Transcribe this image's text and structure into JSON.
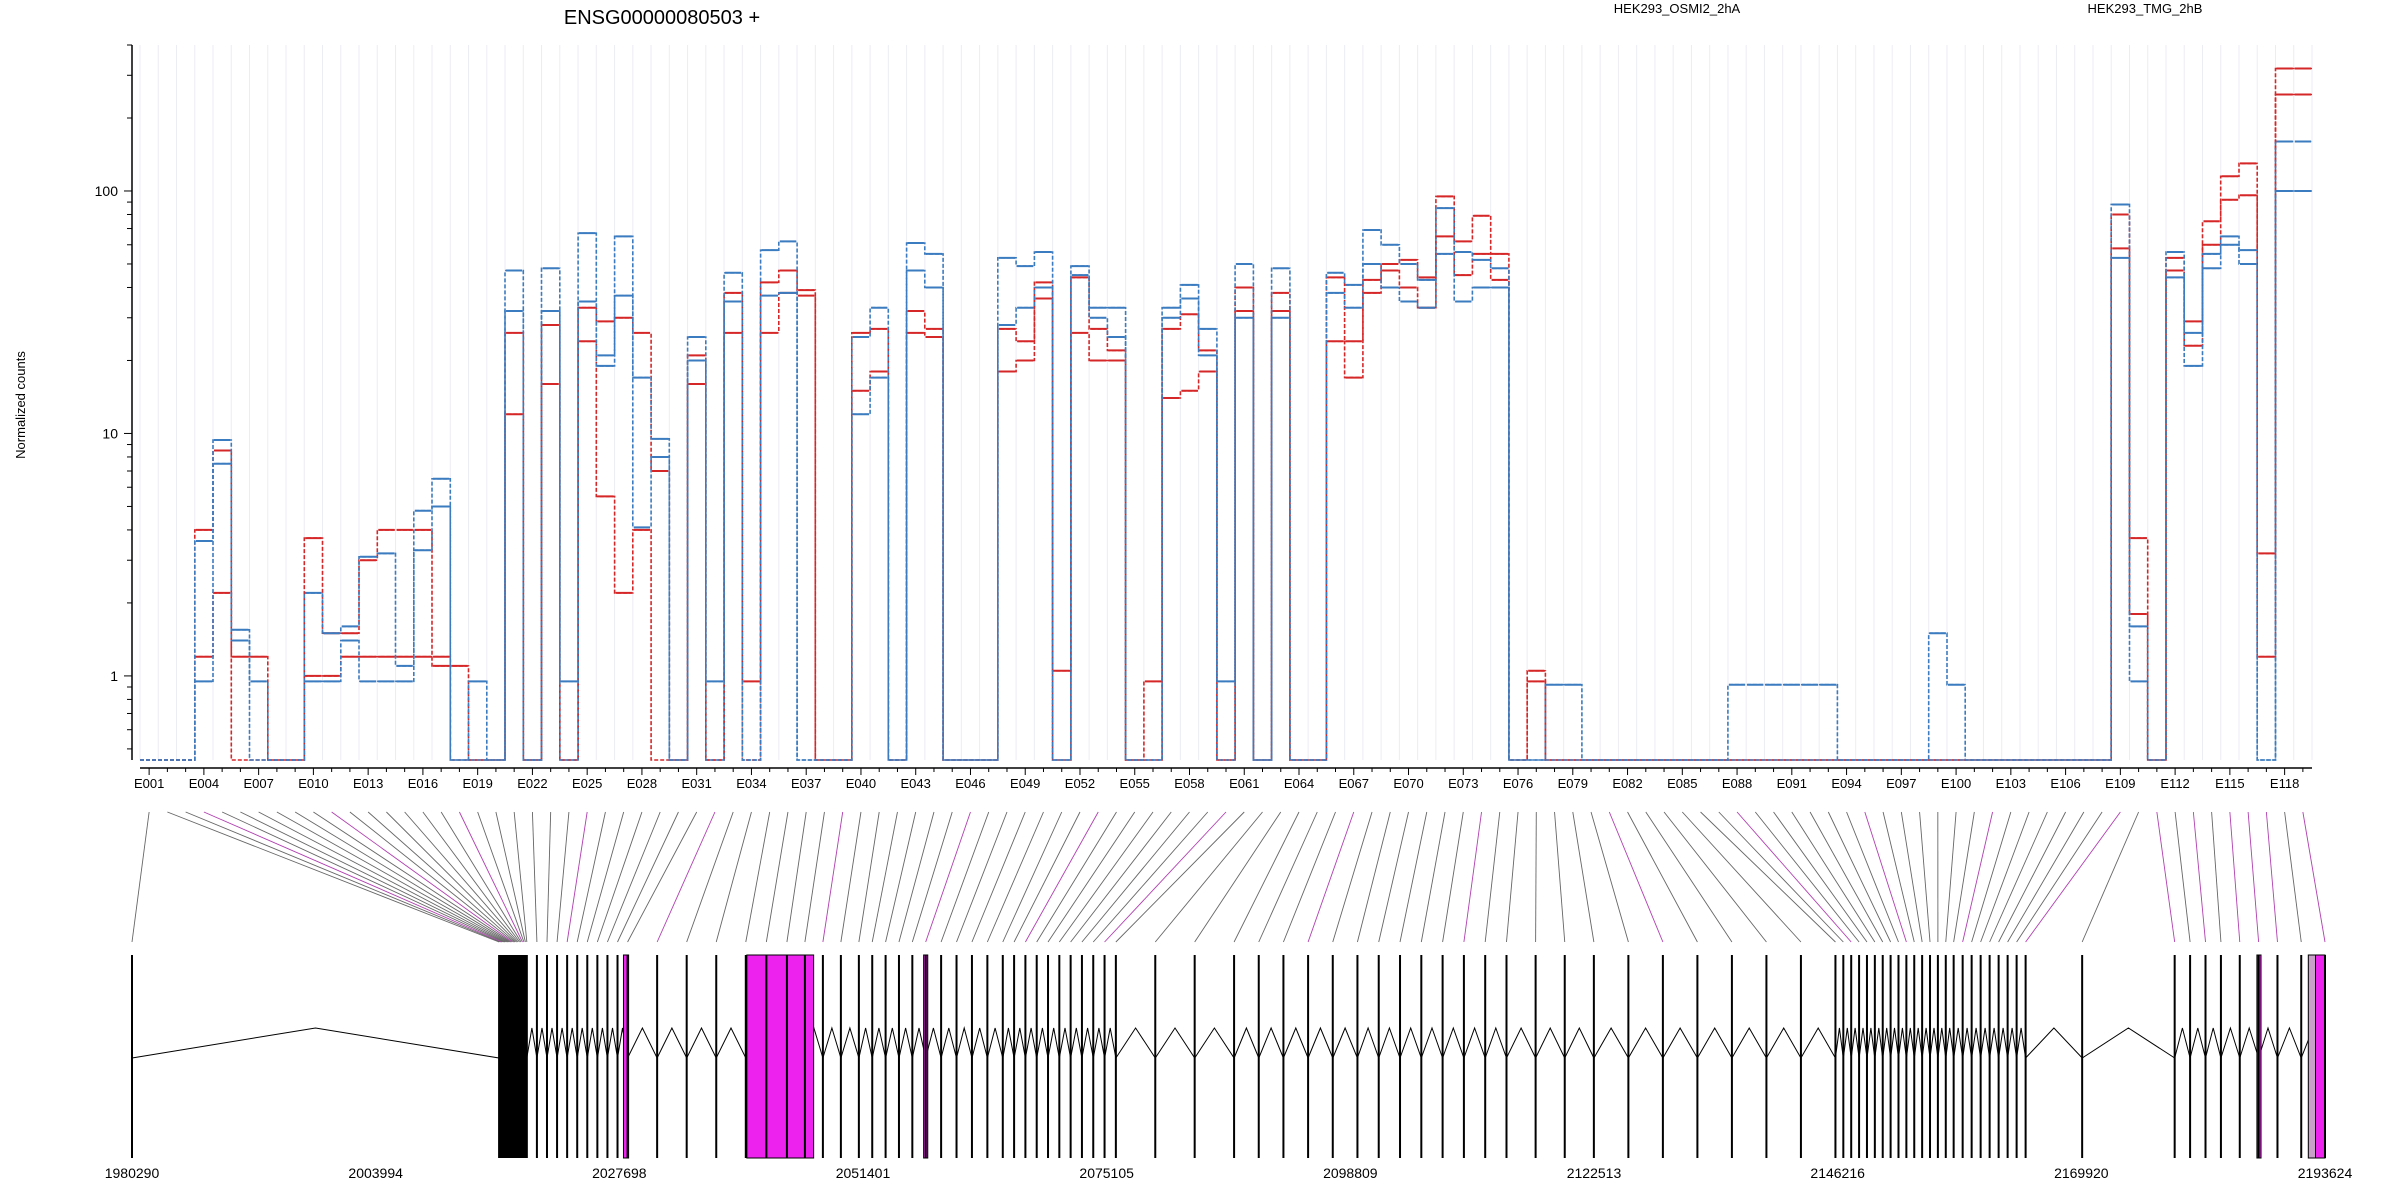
{
  "chart_data": {
    "type": "line",
    "title": "ENSG00000080503 +",
    "ylabel": "Normalized counts",
    "yscale": "log",
    "ylim": [
      0.45,
      400
    ],
    "yticks": [
      1,
      10,
      100
    ],
    "ytick_labels": [
      "1",
      "10",
      "100"
    ],
    "legend": [
      {
        "name": "HEK293_OSMI2_2hA",
        "color": "#d62728"
      },
      {
        "name": "HEK293_TMG_2hB",
        "color": "#3b7bbf"
      }
    ],
    "exon_tick_labels": [
      "E001",
      "E004",
      "E007",
      "E010",
      "E013",
      "E016",
      "E019",
      "E022",
      "E025",
      "E028",
      "E031",
      "E034",
      "E037",
      "E040",
      "E043",
      "E046",
      "E049",
      "E052",
      "E055",
      "E058",
      "E061",
      "E064",
      "E067",
      "E070",
      "E073",
      "E076",
      "E079",
      "E082",
      "E085",
      "E088",
      "E091",
      "E094",
      "E097",
      "E100",
      "E103",
      "E106",
      "E109",
      "E112",
      "E115",
      "E118"
    ],
    "exon_count": 119,
    "genomic_axis": {
      "start": 1980290,
      "end": 2193624,
      "tick_labels": [
        "1980290",
        "2003994",
        "2027698",
        "2051401",
        "2075105",
        "2098809",
        "2122513",
        "2146216",
        "2169920",
        "2193624"
      ]
    },
    "series_exon_values": {
      "OSMI_high": [
        0.45,
        0.45,
        0.45,
        4,
        8.5,
        1.2,
        1.2,
        0.45,
        0.45,
        3.7,
        1.5,
        1.5,
        3,
        4,
        4,
        4,
        1.1,
        1.1,
        0.45,
        0.45,
        26,
        0.45,
        28,
        0.45,
        33,
        29,
        30,
        26,
        7,
        0.45,
        21,
        0.45,
        38,
        0.95,
        42,
        47,
        39,
        0.45,
        0.45,
        26,
        27,
        0.45,
        32,
        27,
        0.45,
        0.45,
        0.45,
        27,
        24,
        42,
        1.05,
        44,
        27,
        22,
        0.45,
        0.95,
        27,
        31,
        22,
        0.45,
        40,
        0.45,
        38,
        0.45,
        0.45,
        44,
        24,
        43,
        50,
        52,
        44,
        95,
        62,
        79,
        55,
        0.45,
        1.05,
        0.45,
        0.45,
        0.45,
        0.45,
        0.45,
        0.45,
        0.45,
        0.45,
        0.45,
        0.45,
        0.45,
        0.45,
        0.45,
        0.45,
        0.45,
        0.45,
        0.45,
        0.45,
        0.45,
        0.45,
        0.45,
        0.45,
        0.45,
        0.45,
        0.45,
        0.45,
        0.45,
        0.45,
        0.45,
        0.45,
        0.45,
        80,
        3.7,
        0.45,
        53,
        29,
        75,
        115,
        130,
        3.2,
        320,
        320
      ],
      "OSMI_low": [
        0.45,
        0.45,
        0.45,
        1.2,
        2.2,
        0.45,
        0.45,
        0.45,
        0.45,
        1.0,
        1.0,
        1.2,
        1.2,
        1.2,
        1.2,
        1.2,
        1.2,
        0.45,
        0.45,
        0.45,
        12,
        0.45,
        16,
        0.45,
        24,
        5.5,
        2.2,
        4,
        0.45,
        0.45,
        16,
        0.45,
        26,
        0.45,
        26,
        38,
        37,
        0.45,
        0.45,
        15,
        18,
        0.45,
        26,
        25,
        0.45,
        0.45,
        0.45,
        18,
        20,
        36,
        0.45,
        26,
        20,
        20,
        0.45,
        0.45,
        14,
        15,
        18,
        0.45,
        32,
        0.45,
        32,
        0.45,
        0.45,
        24,
        17,
        38,
        47,
        40,
        33,
        65,
        45,
        55,
        43,
        0.45,
        0.95,
        0.45,
        0.45,
        0.45,
        0.45,
        0.45,
        0.45,
        0.45,
        0.45,
        0.45,
        0.45,
        0.45,
        0.45,
        0.45,
        0.45,
        0.45,
        0.45,
        0.45,
        0.45,
        0.45,
        0.45,
        0.45,
        0.45,
        0.45,
        0.45,
        0.45,
        0.45,
        0.45,
        0.45,
        0.45,
        0.45,
        0.45,
        58,
        1.8,
        0.45,
        47,
        23,
        60,
        92,
        96,
        1.2,
        250,
        250
      ],
      "TMG_high": [
        0.45,
        0.45,
        0.45,
        3.6,
        9.4,
        1.55,
        0.95,
        0.45,
        0.45,
        2.2,
        1.5,
        1.6,
        3.1,
        3.2,
        1.1,
        4.8,
        6.5,
        0.45,
        0.95,
        0.45,
        47,
        0.45,
        48,
        0.95,
        67,
        21,
        65,
        17,
        9.5,
        0.45,
        25,
        0.95,
        46,
        0.45,
        57,
        62,
        0.45,
        0.45,
        0.45,
        25,
        33,
        0.45,
        61,
        55,
        0.45,
        0.45,
        0.45,
        53,
        49,
        56,
        0.45,
        49,
        33,
        33,
        0.45,
        0.45,
        33,
        41,
        27,
        0.95,
        50,
        0.45,
        48,
        0.45,
        0.45,
        46,
        41,
        69,
        60,
        50,
        43,
        85,
        56,
        52,
        48,
        0.45,
        0.45,
        0.92,
        0.92,
        0.45,
        0.45,
        0.45,
        0.45,
        0.45,
        0.45,
        0.45,
        0.45,
        0.92,
        0.92,
        0.92,
        0.92,
        0.92,
        0.92,
        0.45,
        0.45,
        0.45,
        0.45,
        0.45,
        1.5,
        0.92,
        0.45,
        0.45,
        0.45,
        0.45,
        0.45,
        0.45,
        0.45,
        0.45,
        88,
        1.6,
        0.45,
        56,
        26,
        55,
        65,
        57,
        0.45,
        160,
        160
      ],
      "TMG_low": [
        0.45,
        0.45,
        0.45,
        0.95,
        7.5,
        1.4,
        0.45,
        0.45,
        0.45,
        0.95,
        0.95,
        1.4,
        0.95,
        0.95,
        0.95,
        3.3,
        5.0,
        0.45,
        0.45,
        0.45,
        32,
        0.45,
        32,
        0.45,
        35,
        19,
        37,
        4.1,
        8.0,
        0.45,
        20,
        0.45,
        35,
        0.45,
        37,
        38,
        0.45,
        0.45,
        0.45,
        12,
        17,
        0.45,
        47,
        40,
        0.45,
        0.45,
        0.45,
        28,
        33,
        40,
        0.45,
        45,
        30,
        25,
        0.45,
        0.45,
        30,
        36,
        21,
        0.45,
        30,
        0.45,
        30,
        0.45,
        0.45,
        38,
        33,
        50,
        40,
        35,
        33,
        55,
        35,
        40,
        40,
        0.45,
        0.45,
        0.45,
        0.45,
        0.45,
        0.45,
        0.45,
        0.45,
        0.45,
        0.45,
        0.45,
        0.45,
        0.45,
        0.45,
        0.45,
        0.45,
        0.45,
        0.45,
        0.45,
        0.45,
        0.45,
        0.45,
        0.45,
        0.45,
        0.45,
        0.45,
        0.45,
        0.45,
        0.45,
        0.45,
        0.45,
        0.45,
        0.45,
        53,
        0.95,
        0.45,
        44,
        19,
        48,
        60,
        50,
        0.45,
        100,
        100
      ]
    }
  }
}
